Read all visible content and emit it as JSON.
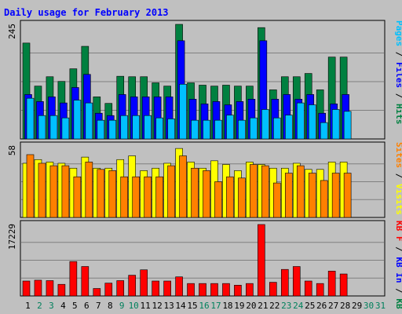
{
  "chart_data": {
    "type": "bar",
    "title": "Daily usage for February 2013",
    "x_tick_labels": [
      "1",
      "2",
      "3",
      "4",
      "5",
      "6",
      "7",
      "8",
      "9",
      "10",
      "11",
      "12",
      "13",
      "14",
      "15",
      "16",
      "17",
      "18",
      "19",
      "20",
      "21",
      "22",
      "23",
      "24",
      "25",
      "26",
      "27",
      "28",
      "29",
      "30",
      "31"
    ],
    "weekend_days": [
      2,
      3,
      9,
      10,
      16,
      17,
      23,
      24,
      30,
      31
    ],
    "panels": [
      {
        "name": "hits-files-pages",
        "scale_max": 245,
        "scale_label": "245",
        "axis_label_parts": [
          {
            "text": "Pages",
            "color": "#00c0ff"
          },
          {
            "text": " / ",
            "color": "#000000"
          },
          {
            "text": "Files",
            "color": "#0000ff"
          },
          {
            "text": " / ",
            "color": "#000000"
          },
          {
            "text": "Hits",
            "color": "#008040"
          }
        ],
        "series": [
          {
            "name": "Hits",
            "color": "#008040",
            "values": [
              205,
              113,
              133,
              123,
              150,
              198,
              90,
              76,
              134,
              133,
              133,
              120,
              113,
              245,
              120,
              115,
              113,
              115,
              113,
              113,
              238,
              105,
              133,
              133,
              140,
              105,
              175,
              175,
              null,
              null,
              null
            ]
          },
          {
            "name": "Files",
            "color": "#0000ff",
            "values": [
              95,
              80,
              90,
              77,
              110,
              138,
              55,
              50,
              95,
              90,
              90,
              90,
              90,
              210,
              85,
              75,
              80,
              73,
              80,
              85,
              210,
              85,
              95,
              85,
              95,
              55,
              75,
              95,
              null,
              null,
              null
            ]
          },
          {
            "name": "Pages",
            "color": "#00c0ff",
            "values": [
              87,
              50,
              50,
              45,
              83,
              77,
              40,
              40,
              50,
              50,
              50,
              45,
              43,
              117,
              40,
              40,
              40,
              51,
              40,
              45,
              63,
              45,
              51,
              77,
              73,
              35,
              63,
              59,
              null,
              null,
              null
            ]
          }
        ]
      },
      {
        "name": "visits-sites",
        "scale_max": 58,
        "scale_label": "58",
        "axis_label_parts": [
          {
            "text": "Sites",
            "color": "#ff8000"
          },
          {
            "text": " / ",
            "color": "#000000"
          },
          {
            "text": "Visits",
            "color": "#ffff00"
          }
        ],
        "series": [
          {
            "name": "Visits",
            "color": "#ffff00",
            "values": [
              44,
              47,
              45,
              44,
              40,
              49,
              40,
              40,
              47,
              50,
              38,
              40,
              44,
              56,
              45,
              40,
              46,
              43,
              38,
              45,
              43,
              40,
              40,
              44,
              39,
              39,
              45,
              45,
              null,
              null,
              null
            ]
          },
          {
            "name": "Sites",
            "color": "#ff8000",
            "values": [
              51,
              44,
              42,
              42,
              33,
              45,
              39,
              38,
              33,
              33,
              33,
              33,
              42,
              50,
              40,
              38,
              29,
              33,
              32,
              43,
              42,
              28,
              36,
              42,
              36,
              30,
              36,
              36,
              null,
              null,
              null
            ]
          }
        ]
      },
      {
        "name": "kbytes",
        "scale_max": 17229,
        "scale_label": "17229",
        "axis_label_parts": [
          {
            "text": "KB F",
            "color": "#ff0000"
          },
          {
            "text": " / ",
            "color": "#000000"
          },
          {
            "text": "KB In",
            "color": "#0000ff"
          },
          {
            "text": " / ",
            "color": "#000000"
          },
          {
            "text": "KB Out",
            "color": "#008040"
          }
        ],
        "series": [
          {
            "name": "KB F",
            "color": "#ff0000",
            "values": [
              3600,
              3800,
              3700,
              2800,
              8300,
              7100,
              1800,
              3100,
              3700,
              5000,
              6300,
              3600,
              3600,
              4600,
              3000,
              3000,
              3000,
              3000,
              2600,
              3000,
              17229,
              3300,
              6400,
              7100,
              3600,
              3000,
              6000,
              5300,
              null,
              null,
              null
            ]
          }
        ]
      }
    ]
  },
  "colors": {
    "background": "#c0c0c0",
    "title": "#0000ff",
    "weekday_label": "#000000",
    "weekend_label": "#00805c",
    "gridline": "#808080"
  }
}
